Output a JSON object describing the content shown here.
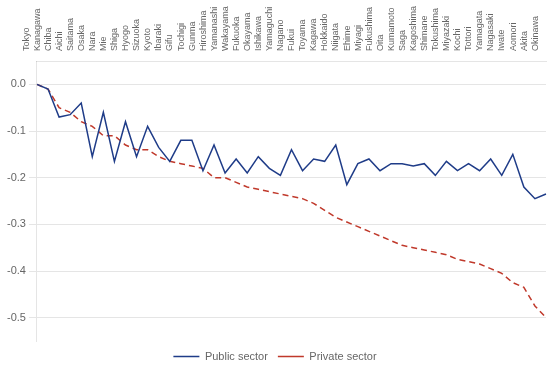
{
  "chart_data": {
    "type": "line",
    "categories": [
      "Tokyo",
      "Kanagawa",
      "Chiba",
      "Aichi",
      "Saitama",
      "Osaka",
      "Nara",
      "Mie",
      "Shiga",
      "Hyogo",
      "Sizuoka",
      "Kyoto",
      "Ibaraki",
      "Gifu",
      "Tochigi",
      "Gunma",
      "Hiroshima",
      "Yamanashi",
      "Wakayama",
      "Fukuoka",
      "Okayama",
      "Ishikawa",
      "Yamaguchi",
      "Nagano",
      "Fukui",
      "Toyama",
      "Kagawa",
      "Hokkaido",
      "Niigata",
      "Ehime",
      "Miyagi",
      "Fukushima",
      "Oita",
      "Kumamoto",
      "Saga",
      "Kagoshima",
      "Shimane",
      "Tokushima",
      "Miyazaki",
      "Kochi",
      "Tottori",
      "Yamagata",
      "Nagasaki",
      "Iwate",
      "Aomori",
      "Akita",
      "Okinawa"
    ],
    "series": [
      {
        "name": "Public sector",
        "color": "#1f3c88",
        "line_style": "solid",
        "values": [
          0.0,
          -0.01,
          -0.07,
          -0.065,
          -0.04,
          -0.155,
          -0.06,
          -0.165,
          -0.08,
          -0.155,
          -0.09,
          -0.135,
          -0.165,
          -0.12,
          -0.12,
          -0.185,
          -0.13,
          -0.19,
          -0.16,
          -0.19,
          -0.155,
          -0.18,
          -0.195,
          -0.14,
          -0.185,
          -0.16,
          -0.165,
          -0.13,
          -0.215,
          -0.17,
          -0.16,
          -0.185,
          -0.17,
          -0.17,
          -0.175,
          -0.17,
          -0.195,
          -0.165,
          -0.185,
          -0.17,
          -0.185,
          -0.16,
          -0.195,
          -0.15,
          -0.22,
          -0.245,
          -0.235
        ]
      },
      {
        "name": "Private sector",
        "color": "#c0392b",
        "line_style": "dashed",
        "values": [
          0.0,
          -0.01,
          -0.05,
          -0.06,
          -0.08,
          -0.09,
          -0.11,
          -0.11,
          -0.13,
          -0.14,
          -0.14,
          -0.155,
          -0.165,
          -0.17,
          -0.175,
          -0.18,
          -0.2,
          -0.2,
          -0.21,
          -0.22,
          -0.225,
          -0.23,
          -0.235,
          -0.24,
          -0.245,
          -0.255,
          -0.27,
          -0.285,
          -0.295,
          -0.305,
          -0.315,
          -0.325,
          -0.335,
          -0.345,
          -0.35,
          -0.355,
          -0.36,
          -0.365,
          -0.375,
          -0.38,
          -0.385,
          -0.395,
          -0.405,
          -0.425,
          -0.435,
          -0.475,
          -0.5
        ]
      }
    ],
    "ylim": [
      -0.55,
      0.05
    ],
    "yticks": [
      {
        "value": 0.0,
        "label": "0.0"
      },
      -0.1,
      -0.2,
      -0.3,
      -0.4,
      -0.5
    ],
    "grid": true,
    "legend": "bottom"
  }
}
